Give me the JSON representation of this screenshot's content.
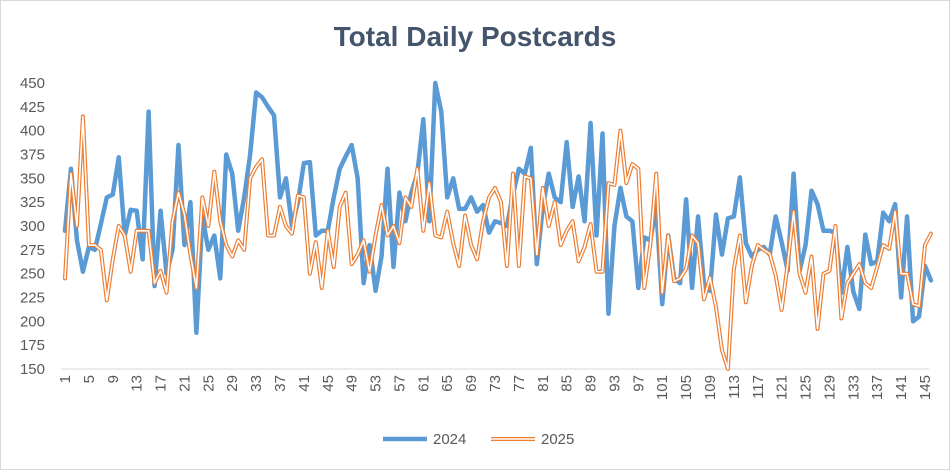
{
  "chart_data": {
    "type": "line",
    "title": "Total Daily Postcards",
    "xlabel": "",
    "ylabel": "",
    "x_tick_labels": [
      "1",
      "5",
      "9",
      "13",
      "17",
      "21",
      "25",
      "29",
      "33",
      "37",
      "41",
      "45",
      "49",
      "53",
      "57",
      "61",
      "65",
      "69",
      "73",
      "77",
      "81",
      "85",
      "89",
      "93",
      "97",
      "101",
      "105",
      "109",
      "113",
      "117",
      "121",
      "125",
      "129",
      "133",
      "137",
      "141",
      "145"
    ],
    "y_tick_labels": [
      "150",
      "175",
      "200",
      "225",
      "250",
      "275",
      "300",
      "325",
      "350",
      "375",
      "400",
      "425",
      "450"
    ],
    "ylim": [
      150,
      450
    ],
    "xlim": [
      1,
      145
    ],
    "grid": false,
    "legend_position": "bottom",
    "series": [
      {
        "name": "2024",
        "color": "#5b9bd5",
        "style": "thick-line",
        "values": [
          295,
          360,
          285,
          252,
          278,
          275,
          302,
          330,
          333,
          372,
          290,
          317,
          316,
          265,
          420,
          237,
          316,
          250,
          275,
          385,
          280,
          325,
          188,
          310,
          275,
          290,
          245,
          375,
          355,
          295,
          330,
          375,
          440,
          435,
          425,
          416,
          330,
          350,
          300,
          325,
          366,
          367,
          290,
          295,
          295,
          330,
          360,
          373,
          385,
          350,
          240,
          280,
          232,
          268,
          360,
          257,
          335,
          305,
          335,
          355,
          412,
          305,
          450,
          420,
          330,
          350,
          318,
          318,
          330,
          315,
          322,
          293,
          305,
          303,
          300,
          333,
          360,
          355,
          382,
          260,
          320,
          355,
          330,
          325,
          388,
          320,
          352,
          305,
          408,
          290,
          397,
          208,
          300,
          340,
          310,
          305,
          235,
          288,
          285,
          320,
          218,
          290,
          245,
          240,
          328,
          235,
          310,
          238,
          232,
          312,
          270,
          308,
          310,
          351,
          282,
          268,
          275,
          278,
          270,
          310,
          283,
          253,
          355,
          253,
          280,
          337,
          323,
          295,
          295,
          293,
          230,
          278,
          231,
          213,
          291,
          260,
          263,
          314,
          305,
          323,
          225,
          310,
          200,
          205,
          258,
          243
        ]
      },
      {
        "name": "2025",
        "color": "#ed7d31",
        "style": "double-outline-line",
        "values": [
          245,
          355,
          300,
          415,
          280,
          280,
          275,
          222,
          265,
          300,
          290,
          252,
          295,
          295,
          295,
          240,
          253,
          230,
          305,
          335,
          312,
          270,
          235,
          330,
          300,
          357,
          305,
          280,
          268,
          285,
          275,
          350,
          362,
          370,
          290,
          290,
          320,
          300,
          292,
          332,
          330,
          250,
          283,
          235,
          295,
          257,
          320,
          335,
          260,
          270,
          285,
          252,
          290,
          322,
          290,
          300,
          282,
          330,
          320,
          360,
          295,
          345,
          290,
          288,
          315,
          282,
          258,
          311,
          280,
          265,
          305,
          330,
          340,
          325,
          258,
          355,
          258,
          352,
          350,
          270,
          340,
          300,
          325,
          280,
          295,
          305,
          263,
          278,
          302,
          252,
          252,
          345,
          343,
          400,
          345,
          365,
          360,
          235,
          280,
          355,
          230,
          290,
          242,
          245,
          255,
          290,
          282,
          223,
          246,
          215,
          170,
          150,
          255,
          290,
          220,
          258,
          280,
          275,
          271,
          248,
          212,
          260,
          315,
          250,
          230,
          268,
          192,
          250,
          253,
          300,
          203,
          240,
          250,
          260,
          240,
          235,
          257,
          280,
          276,
          315,
          250,
          250,
          218,
          216,
          280,
          292
        ]
      }
    ]
  }
}
